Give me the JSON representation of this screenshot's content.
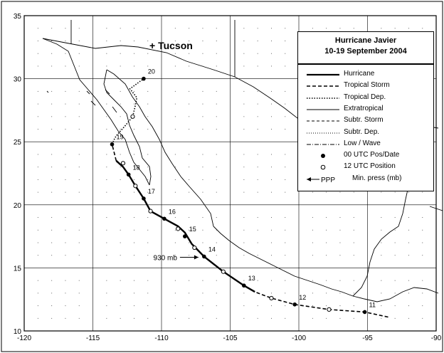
{
  "figure": {
    "title_line1": "Hurricane Javier",
    "title_line2": "10-19 September 2004",
    "city_label": "+ Tucson"
  },
  "axes": {
    "lon_min": -120,
    "lon_max": -90,
    "lat_min": 10,
    "lat_max": 35,
    "x_ticks": [
      "-120",
      "-115",
      "-110",
      "-105",
      "-100",
      "-95",
      "-90"
    ],
    "y_ticks": [
      "35",
      "30",
      "25",
      "20",
      "15",
      "10"
    ]
  },
  "legend": {
    "items": [
      {
        "label": "Hurricane",
        "style": "hurricane"
      },
      {
        "label": "Tropical Storm",
        "style": "tropical-storm"
      },
      {
        "label": "Tropical Dep.",
        "style": "tropical-dep"
      },
      {
        "label": "Extratropical",
        "style": "extratropical"
      },
      {
        "label": "Subtr. Storm",
        "style": "subtr-storm"
      },
      {
        "label": "Subtr. Dep.",
        "style": "subtr-dep"
      },
      {
        "label": "Low / Wave",
        "style": "low-wave"
      },
      {
        "label": "00 UTC Pos/Date",
        "style": "dot-filled"
      },
      {
        "label": "12 UTC Position",
        "style": "dot-open"
      },
      {
        "label": "Min. press (mb)",
        "style": "arrow",
        "prefix": "PPP"
      }
    ]
  },
  "chart_data": {
    "type": "map-track",
    "storm": "Hurricane Javier",
    "segments": [
      {
        "status": "tropical-storm",
        "points": [
          [
            -93.5,
            11.1
          ],
          [
            -95.2,
            11.5
          ],
          [
            -97.8,
            11.7
          ],
          [
            -100.3,
            12.1
          ],
          [
            -102.0,
            12.6
          ],
          [
            -103.2,
            13.1
          ]
        ]
      },
      {
        "status": "hurricane",
        "points": [
          [
            -103.2,
            13.1
          ],
          [
            -104.0,
            13.6
          ],
          [
            -105.5,
            14.7
          ],
          [
            -106.9,
            15.9
          ],
          [
            -107.8,
            16.9
          ],
          [
            -108.3,
            17.8
          ],
          [
            -108.8,
            18.3
          ],
          [
            -109.8,
            18.9
          ],
          [
            -110.8,
            19.5
          ],
          [
            -111.3,
            20.5
          ],
          [
            -111.9,
            21.5
          ],
          [
            -112.4,
            22.4
          ],
          [
            -112.8,
            23.0
          ],
          [
            -113.3,
            23.5
          ]
        ]
      },
      {
        "status": "tropical-storm",
        "points": [
          [
            -113.3,
            23.5
          ],
          [
            -113.6,
            24.8
          ]
        ]
      },
      {
        "status": "tropical-dep",
        "points": [
          [
            -113.6,
            24.8
          ],
          [
            -113.4,
            25.3
          ],
          [
            -113.2,
            25.6
          ],
          [
            -112.7,
            26.2
          ],
          [
            -112.1,
            27.0
          ],
          [
            -111.9,
            27.9
          ],
          [
            -111.8,
            28.5
          ],
          [
            -112.3,
            29.2
          ],
          [
            -111.3,
            30.0
          ]
        ]
      }
    ],
    "positions_00utc": [
      {
        "date": "11",
        "lon": -95.2,
        "lat": 11.5
      },
      {
        "date": "12",
        "lon": -100.3,
        "lat": 12.1
      },
      {
        "date": "13",
        "lon": -104.0,
        "lat": 13.6
      },
      {
        "date": "14",
        "lon": -106.9,
        "lat": 15.9
      },
      {
        "date": "15",
        "lon": -108.3,
        "lat": 17.5
      },
      {
        "date": "16",
        "lon": -109.8,
        "lat": 18.9
      },
      {
        "date": "17",
        "lon": -111.3,
        "lat": 20.5
      },
      {
        "date": "18",
        "lon": -112.4,
        "lat": 22.4
      },
      {
        "date": "19",
        "lon": -113.6,
        "lat": 24.8
      },
      {
        "date": "20",
        "lon": -111.3,
        "lat": 30.0
      }
    ],
    "positions_12utc": [
      {
        "lon": -97.8,
        "lat": 11.7
      },
      {
        "lon": -102.0,
        "lat": 12.6
      },
      {
        "lon": -105.5,
        "lat": 14.7
      },
      {
        "lon": -107.6,
        "lat": 16.6
      },
      {
        "lon": -108.8,
        "lat": 18.1
      },
      {
        "lon": -110.8,
        "lat": 19.5
      },
      {
        "lon": -111.9,
        "lat": 21.5
      },
      {
        "lon": -112.8,
        "lat": 23.3
      },
      {
        "lon": -112.1,
        "lat": 27.0
      }
    ],
    "min_pressure": {
      "label": "930 mb",
      "lon": -107.0,
      "lat": 15.9
    },
    "tucson": {
      "lon": -111.0,
      "lat": 32.2
    }
  }
}
